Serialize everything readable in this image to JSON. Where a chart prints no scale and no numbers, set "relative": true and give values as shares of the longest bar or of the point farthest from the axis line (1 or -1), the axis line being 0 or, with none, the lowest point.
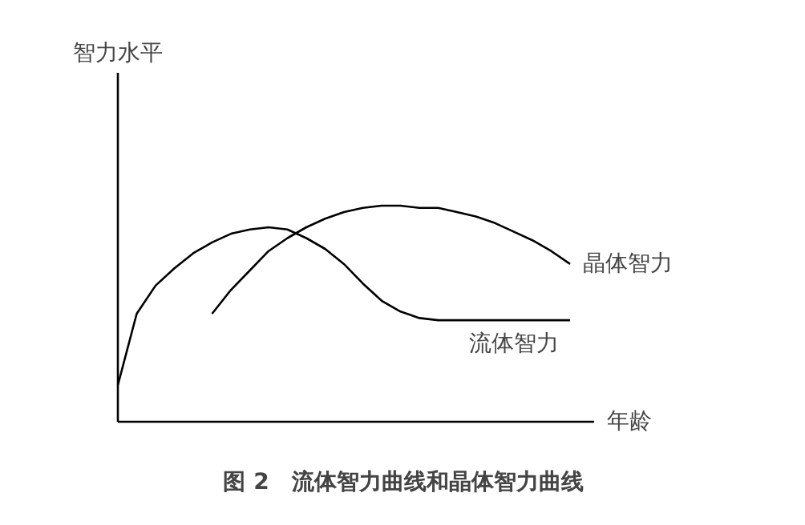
{
  "chart_data": {
    "type": "line",
    "title": "图 2　流体智力曲线和晶体智力曲线",
    "xlabel": "年龄",
    "annotations": [
      "智力水平"
    ],
    "relative": true,
    "categories": [
      null,
      null,
      null,
      null,
      null,
      null,
      null,
      null,
      null,
      null,
      null,
      null,
      null,
      null,
      null,
      null,
      null,
      null,
      null,
      null,
      null,
      null,
      null,
      null,
      null
    ],
    "series": [
      {
        "name": "晶体智力",
        "color": "#000000",
        "values": [
          null,
          null,
          null,
          null,
          null,
          0.5,
          0.61,
          0.7,
          0.79,
          0.85,
          0.9,
          0.94,
          0.97,
          0.99,
          1.0,
          1.0,
          0.99,
          0.99,
          0.97,
          0.95,
          0.92,
          0.88,
          0.84,
          0.79,
          0.73
        ]
      },
      {
        "name": "流体智力",
        "color": "#000000",
        "values": [
          0.17,
          0.5,
          0.63,
          0.71,
          0.78,
          0.83,
          0.87,
          0.89,
          0.9,
          0.89,
          0.85,
          0.8,
          0.73,
          0.64,
          0.56,
          0.51,
          0.48,
          0.47,
          0.47,
          0.47,
          0.47,
          0.47,
          0.47,
          0.47,
          0.47
        ]
      }
    ]
  }
}
